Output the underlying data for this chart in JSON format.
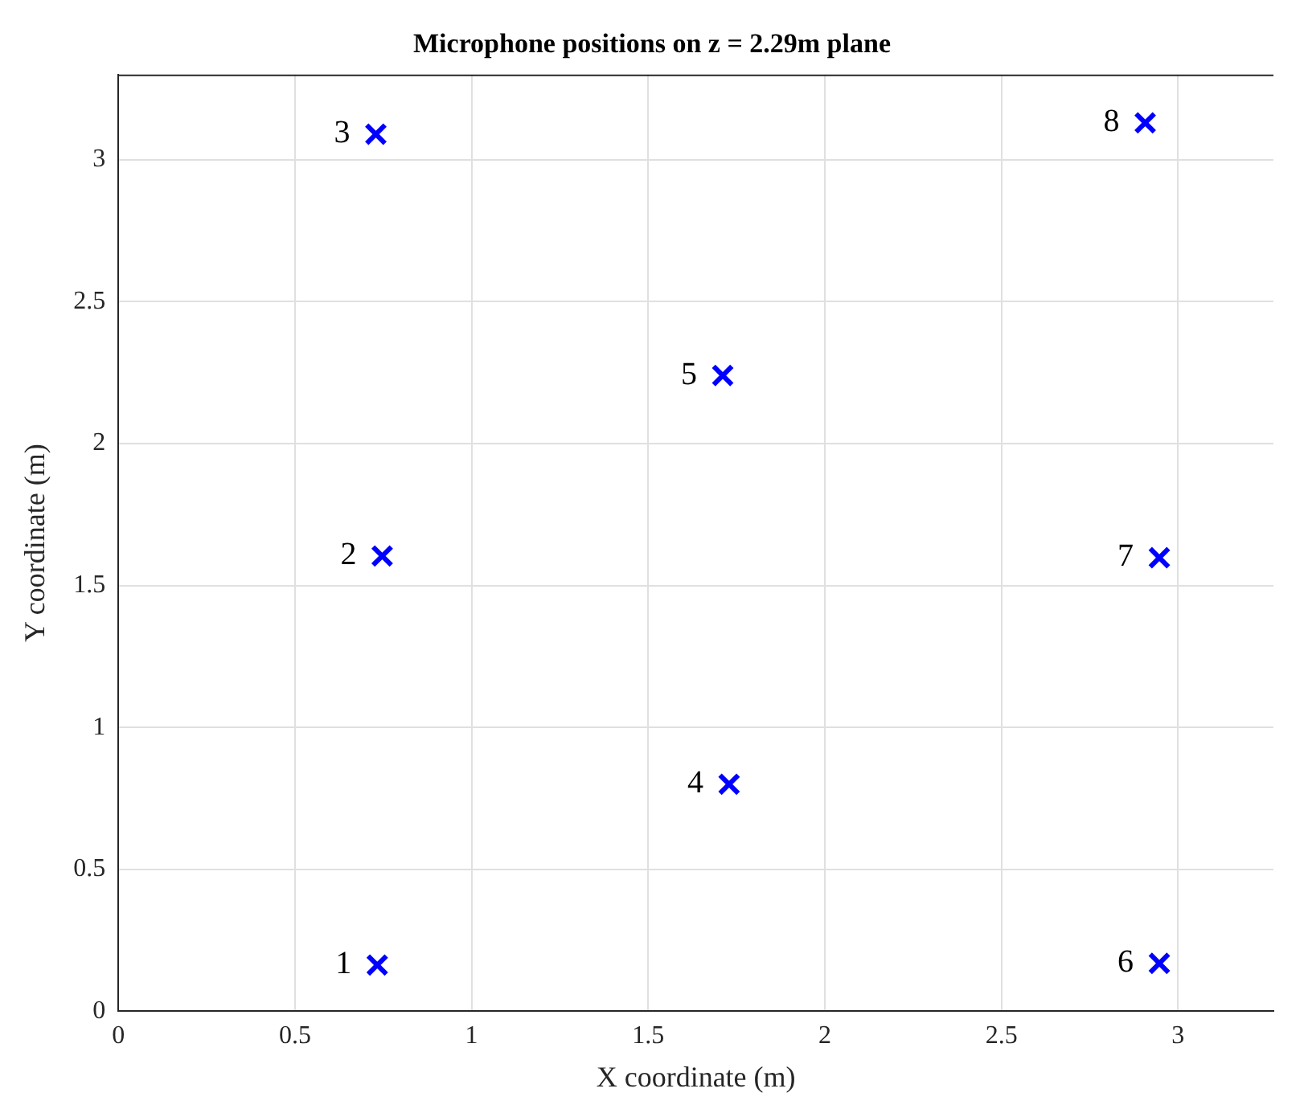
{
  "chart_data": {
    "type": "scatter",
    "title": "Microphone positions on z = 2.29m plane",
    "xlabel": "X coordinate (m)",
    "ylabel": "Y coordinate (m)",
    "x": [
      0.733,
      0.747,
      0.729,
      1.729,
      1.711,
      2.947,
      2.947,
      2.907
    ],
    "series": [
      {
        "color": "#0000ff",
        "values": [
          0.163,
          1.604,
          3.09,
          0.8,
          2.24,
          0.169,
          1.598,
          3.13
        ]
      }
    ],
    "xlim": [
      0,
      3.27
    ],
    "ylim": [
      0,
      3.3
    ],
    "xticks": [
      0,
      0.5,
      1,
      1.5,
      2,
      2.5,
      3
    ],
    "yticks": [
      0,
      0.5,
      1,
      1.5,
      2,
      2.5,
      3
    ],
    "grid": true,
    "legend": false,
    "marker": "cross",
    "annotations": [
      {
        "text": "1",
        "x": 0.733,
        "y": 0.163
      },
      {
        "text": "2",
        "x": 0.747,
        "y": 1.604
      },
      {
        "text": "3",
        "x": 0.729,
        "y": 3.09
      },
      {
        "text": "4",
        "x": 1.729,
        "y": 0.8
      },
      {
        "text": "5",
        "x": 1.711,
        "y": 2.24
      },
      {
        "text": "6",
        "x": 2.947,
        "y": 0.169
      },
      {
        "text": "7",
        "x": 2.947,
        "y": 1.598
      },
      {
        "text": "8",
        "x": 2.907,
        "y": 3.13
      }
    ]
  }
}
